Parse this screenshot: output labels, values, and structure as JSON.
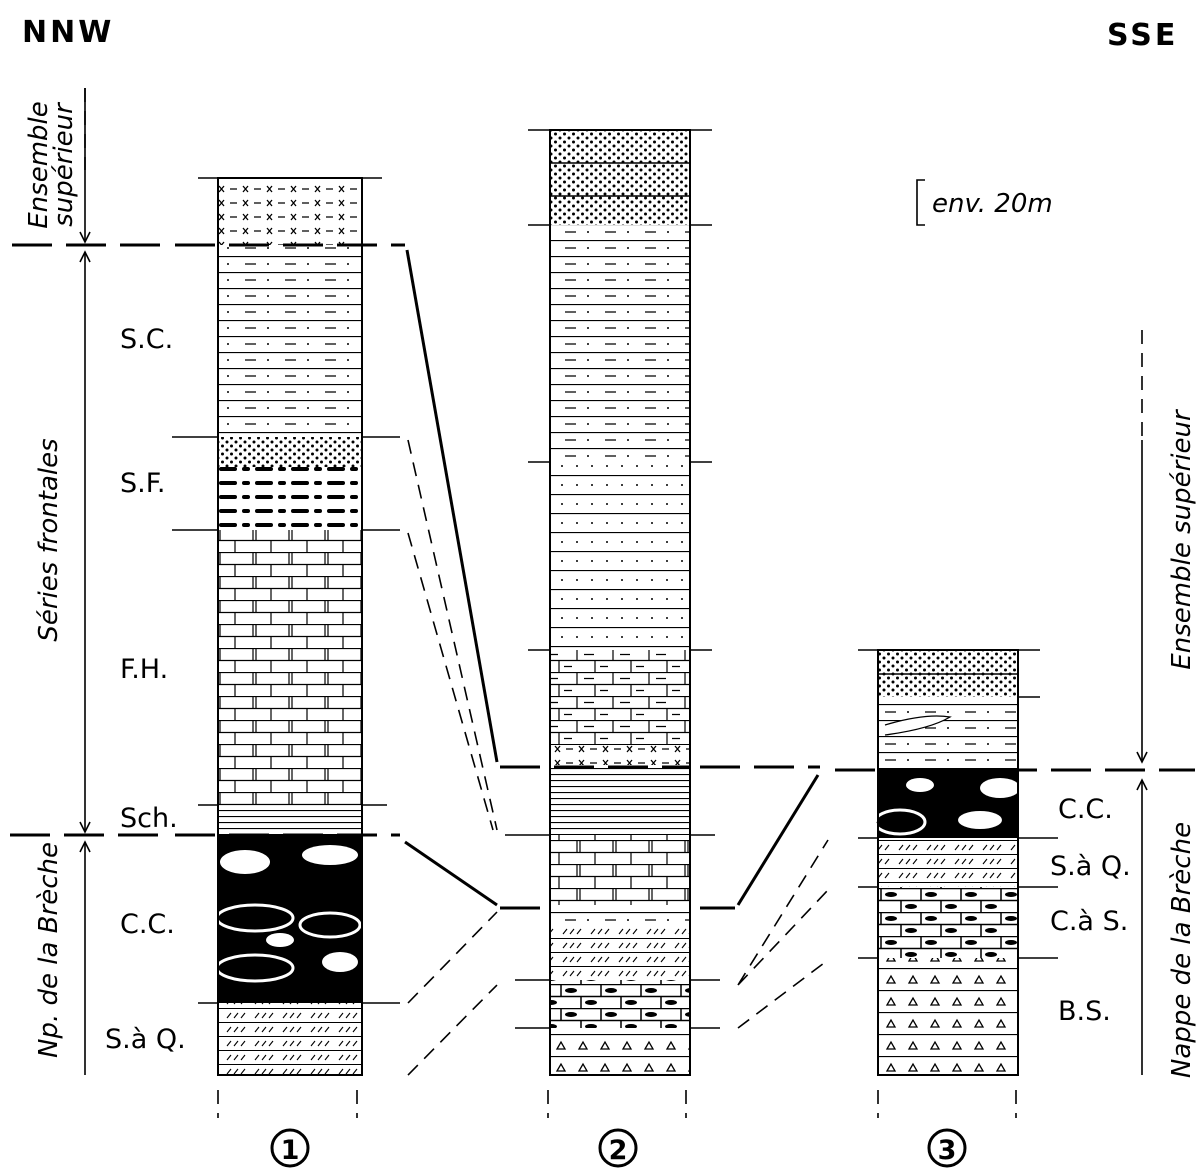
{
  "header": {
    "left": "NNW",
    "right": "SSE"
  },
  "scale_label": "env. 20m",
  "left_groups": [
    {
      "lines": [
        "Ensemble",
        "supérieur"
      ]
    },
    "Séries frontales",
    "Np. de la Brèche"
  ],
  "right_groups": [
    "Ensemble supérieur",
    "Nappe de la Brèche"
  ],
  "column_1_units": [
    "S.C.",
    "S.F.",
    "F.H.",
    "Sch.",
    "C.C.",
    "S.à Q."
  ],
  "column_3_units": [
    "C.C.",
    "S.à Q.",
    "C.à S.",
    "B.S."
  ],
  "columns": [
    "1",
    "2",
    "3"
  ]
}
